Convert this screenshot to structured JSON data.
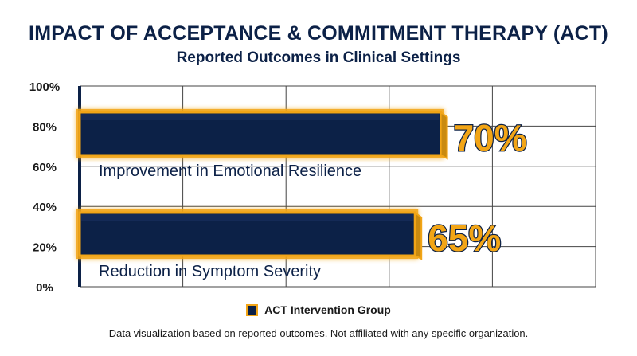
{
  "title": "IMPACT OF ACCEPTANCE & COMMITMENT THERAPY (ACT)",
  "subtitle": "Reported Outcomes in Clinical Settings",
  "colors": {
    "bar_fill": "#0c2147",
    "bar_outline": "#f2a516",
    "value_label": "#f2a516",
    "value_label_outline": "#0c2147",
    "title": "#0c2147",
    "grid": "#444444"
  },
  "chart_data": {
    "type": "bar",
    "orientation": "horizontal",
    "categories": [
      "Improvement in Emotional Resilience",
      "Reduction in Symptom Severity"
    ],
    "series": [
      {
        "name": "ACT Intervention Group",
        "values": [
          70,
          65
        ]
      }
    ],
    "value_labels": [
      "70%",
      "65%"
    ],
    "y_ticks": [
      "100%",
      "80%",
      "60%",
      "40%",
      "20%",
      "0%"
    ],
    "range": [
      0,
      100
    ],
    "grid": true,
    "legend_position": "bottom"
  },
  "legend": {
    "label": "ACT Intervention Group"
  },
  "footnote": "Data visualization based on reported outcomes. Not affiliated with any specific organization."
}
